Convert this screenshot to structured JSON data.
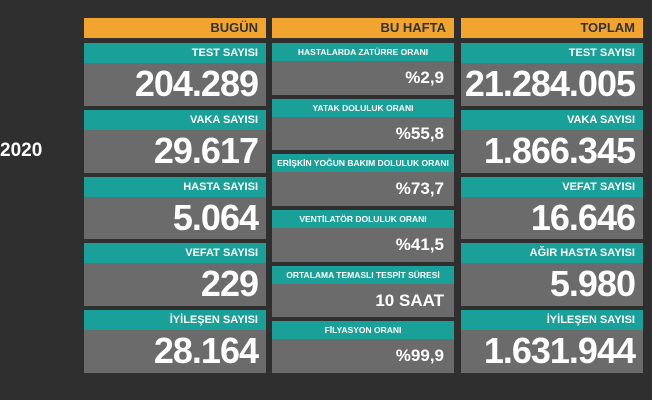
{
  "side_label": "2020",
  "columns": [
    {
      "header": "BUGÜN",
      "rows": [
        {
          "label": "TEST SAYISI",
          "value": "204.289"
        },
        {
          "label": "VAKA SAYISI",
          "value": "29.617"
        },
        {
          "label": "HASTA SAYISI",
          "value": "5.064"
        },
        {
          "label": "VEFAT SAYISI",
          "value": "229"
        },
        {
          "label": "İYİLEŞEN SAYISI",
          "value": "28.164"
        }
      ]
    },
    {
      "header": "BU HAFTA",
      "rows": [
        {
          "label": "HASTALARDA ZATÜRRE ORANI",
          "value": "%2,9"
        },
        {
          "label": "YATAK DOLULUK ORANI",
          "value": "%55,8"
        },
        {
          "label": "ERİŞKİN YOĞUN BAKIM DOLULUK ORANI",
          "value": "%73,7"
        },
        {
          "label": "VENTİLATÖR DOLULUK ORANI",
          "value": "%41,5"
        },
        {
          "label": "ORTALAMA TEMASLI TESPİT SÜRESİ",
          "value": "10 SAAT"
        },
        {
          "label": "FİLYASYON ORANI",
          "value": "%99,9"
        }
      ]
    },
    {
      "header": "TOPLAM",
      "rows": [
        {
          "label": "TEST SAYISI",
          "value": "21.284.005"
        },
        {
          "label": "VAKA SAYISI",
          "value": "1.866.345"
        },
        {
          "label": "VEFAT SAYISI",
          "value": "16.646"
        },
        {
          "label": "AĞIR HASTA SAYISI",
          "value": "5.980"
        },
        {
          "label": "İYİLEŞEN SAYISI",
          "value": "1.631.944"
        }
      ]
    }
  ]
}
